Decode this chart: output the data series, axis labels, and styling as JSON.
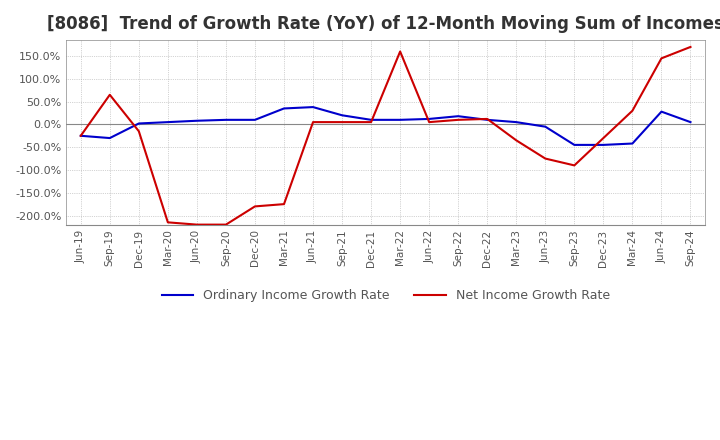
{
  "title": "[8086]  Trend of Growth Rate (YoY) of 12-Month Moving Sum of Incomes",
  "title_fontsize": 12,
  "ylim": [
    -220,
    185
  ],
  "yticks": [
    -200,
    -150,
    -100,
    -50,
    0,
    50,
    100,
    150
  ],
  "background_color": "#ffffff",
  "plot_bg_color": "#ffffff",
  "grid_color": "#aaaaaa",
  "legend_labels": [
    "Ordinary Income Growth Rate",
    "Net Income Growth Rate"
  ],
  "line_colors": [
    "#0000cc",
    "#cc0000"
  ],
  "x_labels": [
    "Jun-19",
    "Sep-19",
    "Dec-19",
    "Mar-20",
    "Jun-20",
    "Sep-20",
    "Dec-20",
    "Mar-21",
    "Jun-21",
    "Sep-21",
    "Dec-21",
    "Mar-22",
    "Jun-22",
    "Sep-22",
    "Dec-22",
    "Mar-23",
    "Jun-23",
    "Sep-23",
    "Dec-23",
    "Mar-24",
    "Jun-24",
    "Sep-24"
  ],
  "ordinary_income": [
    -25,
    -30,
    2,
    5,
    8,
    10,
    10,
    35,
    38,
    20,
    10,
    10,
    12,
    18,
    10,
    5,
    -5,
    -45,
    -45,
    -42,
    28,
    5
  ],
  "net_income": [
    -25,
    65,
    -15,
    -215,
    -220,
    -220,
    -180,
    -175,
    5,
    5,
    5,
    160,
    5,
    10,
    12,
    -35,
    -75,
    -90,
    -30,
    30,
    145,
    170
  ]
}
